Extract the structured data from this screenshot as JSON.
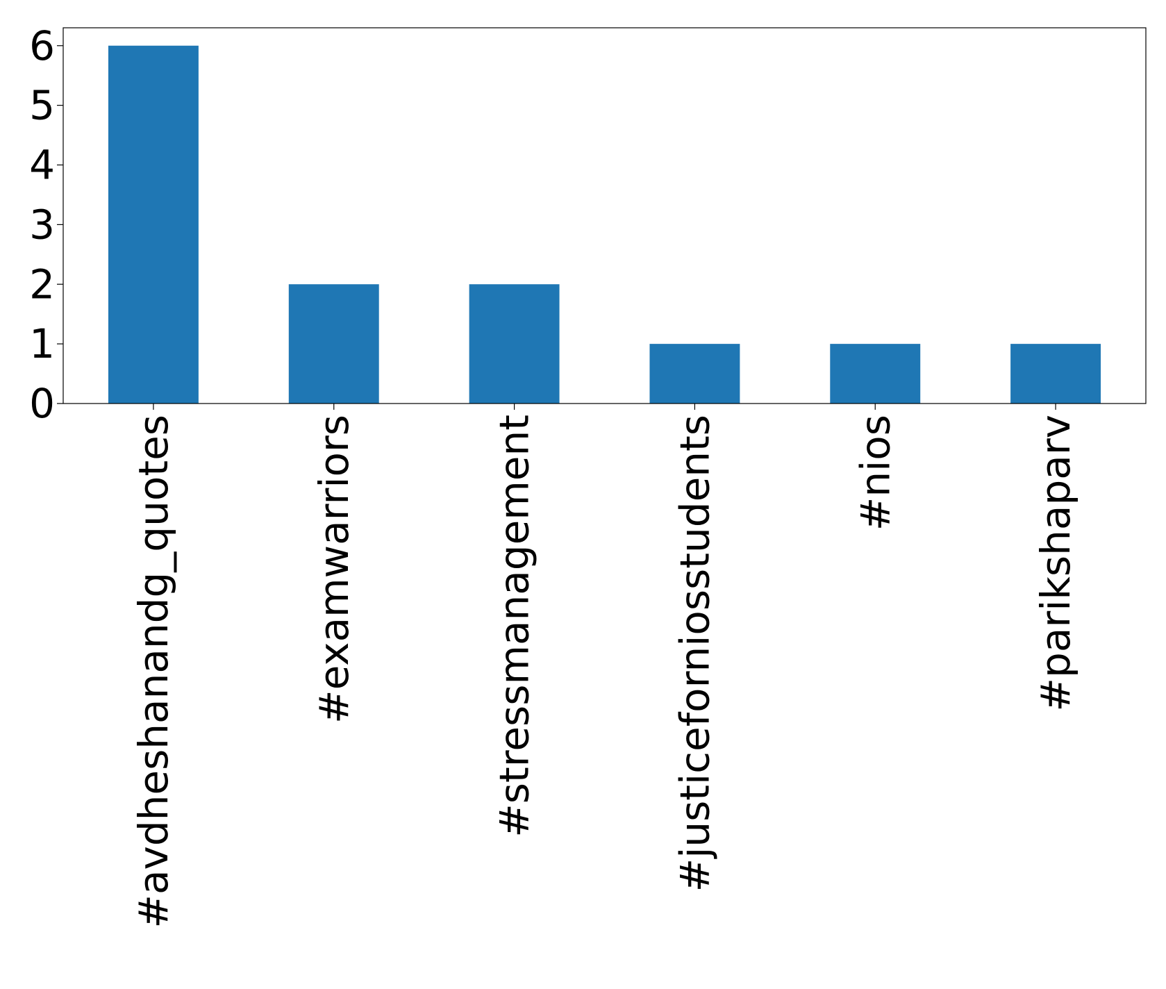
{
  "chart_data": {
    "type": "bar",
    "title": "",
    "xlabel": "",
    "ylabel": "",
    "categories": [
      "#avdheshanandg_quotes",
      "#examwarriors",
      "#stressmanagement",
      "#justiceforniosstudents",
      "#nios",
      "#parikshaparv"
    ],
    "values": [
      6,
      2,
      2,
      1,
      1,
      1
    ],
    "ylim": [
      0,
      6.3
    ],
    "yticks": [
      "0",
      "1",
      "2",
      "3",
      "4",
      "5",
      "6"
    ],
    "bar_color": "#1f77b4",
    "grid": false,
    "legend": "none"
  }
}
